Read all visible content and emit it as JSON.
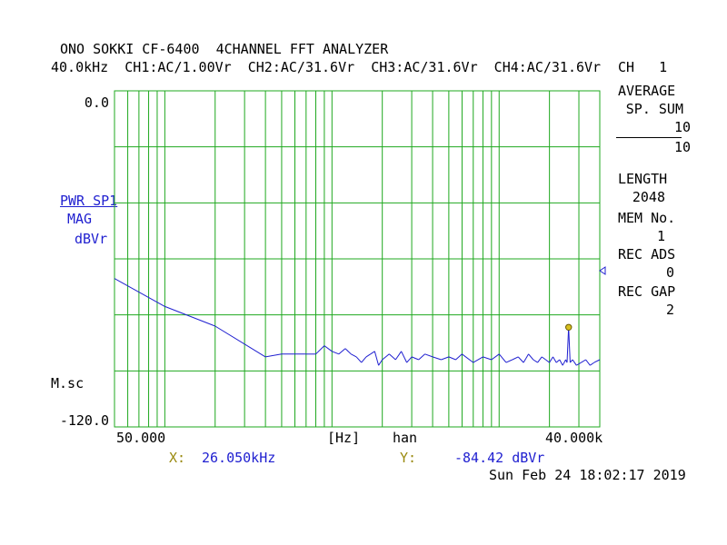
{
  "header": {
    "line1": "ONO SOKKI CF-6400  4CHANNEL FFT ANALYZER",
    "line2": "40.0kHz  CH1:AC/1.00Vr  CH2:AC/31.6Vr  CH3:AC/31.6Vr  CH4:AC/31.6Vr"
  },
  "side": {
    "channel": "CH   1",
    "average_label": "AVERAGE",
    "sum_label": "SP. SUM",
    "avg_num": "10",
    "avg_den": "10",
    "length_label": "LENGTH",
    "length_value": "2048",
    "mem_label": "MEM No.",
    "mem_value": "1",
    "rec_ads_label": "REC ADS",
    "rec_ads_value": "0",
    "rec_gap_label": "REC GAP",
    "rec_gap_value": "2"
  },
  "left": {
    "ytop": "0.0",
    "ybottom": "-120.0",
    "trace_name": "PWR SP1",
    "trace_type": "MAG",
    "trace_unit": "dBVr",
    "mscale": "M.sc"
  },
  "bottom": {
    "xmin_label": "50.000",
    "xunit": "[Hz]",
    "window": "han",
    "xmax_label": "40.000k",
    "cursor_x_label": "X:",
    "cursor_x_value": "26.050kHz",
    "cursor_y_label": "Y:",
    "cursor_y_value": "-84.42 dBVr",
    "timestamp": "Sun Feb 24 18:02:17 2019"
  },
  "colors": {
    "grid": "#1fa81f",
    "trace": "#1f1fd0",
    "label": "#1f1fd0",
    "cursor_label": "#9a8a10"
  },
  "chart_data": {
    "type": "line",
    "x_scale": "log",
    "xlim": [
      50,
      40000
    ],
    "ylim": [
      -120,
      0
    ],
    "ylabel": "dBVr",
    "xlabel": "[Hz]",
    "grid": true,
    "series": [
      {
        "name": "PWR SP1",
        "x": [
          50,
          100,
          200,
          400,
          500,
          700,
          800,
          900,
          1000,
          1100,
          1200,
          1300,
          1400,
          1500,
          1600,
          1700,
          1800,
          1900,
          2000,
          2200,
          2400,
          2600,
          2800,
          3000,
          3300,
          3600,
          4000,
          4500,
          5000,
          5500,
          6000,
          7000,
          8000,
          9000,
          10000,
          11000,
          12000,
          13000,
          14000,
          15000,
          16000,
          17000,
          18000,
          19000,
          20000,
          21000,
          22000,
          23000,
          24000,
          25000,
          25500,
          26050,
          26600,
          27500,
          29000,
          31000,
          33000,
          35000,
          37000,
          40000
        ],
        "y": [
          -67,
          -77,
          -84,
          -95,
          -94,
          -94,
          -94,
          -91,
          -93,
          -94,
          -92,
          -94,
          -95,
          -97,
          -95,
          -94,
          -93,
          -98,
          -96,
          -94,
          -96,
          -93,
          -97,
          -95,
          -96,
          -94,
          -95,
          -96,
          -95,
          -96,
          -94,
          -97,
          -95,
          -96,
          -94,
          -97,
          -96,
          -95,
          -97,
          -94,
          -96,
          -97,
          -95,
          -96,
          -97,
          -95,
          -97,
          -96,
          -98,
          -96,
          -97,
          -84.42,
          -97,
          -96,
          -98,
          -97,
          -96,
          -98,
          -97,
          -96
        ]
      }
    ],
    "marker": {
      "x": 26050,
      "y": -84.42
    }
  }
}
